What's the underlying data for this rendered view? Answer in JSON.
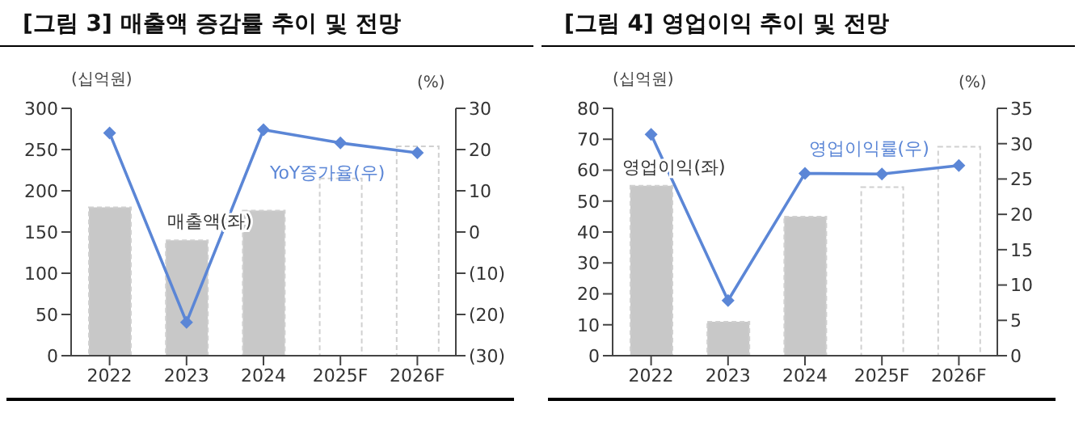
{
  "chart_data": [
    {
      "type": "bar",
      "title": "[그림 3] 매출액 증감률 추이 및 전망",
      "ylabel": "(십억원)",
      "y2label": "(%)",
      "categories": [
        "2022",
        "2023",
        "2024",
        "2025F",
        "2026F"
      ],
      "series": [
        {
          "name": "매출액(좌)",
          "colors": [
            "#c8c8c8",
            "#c8c8c8",
            "#c8c8c8",
            "#ffffff",
            "#ffffff"
          ],
          "values": [
            180,
            140,
            176,
            215,
            254
          ]
        },
        {
          "name": "YoY증가율(우)",
          "type": "line",
          "axis": "y2",
          "color": "#5b86d6",
          "values": [
            24.0,
            -21.9,
            24.8,
            21.6,
            19.2
          ]
        }
      ],
      "ylim": [
        0,
        300
      ],
      "yticks": [
        0,
        50,
        100,
        150,
        200,
        250,
        300
      ],
      "y2lim": [
        -30,
        30
      ],
      "y2ticks": [
        {
          "value": -30,
          "label": "(30)"
        },
        {
          "value": -20,
          "label": "(20)"
        },
        {
          "value": -10,
          "label": "(10)"
        },
        0,
        10,
        20,
        30
      ],
      "grid": false,
      "legend": false,
      "marker": "diamond"
    },
    {
      "type": "bar",
      "title": "[그림 4] 영업이익 추이 및 전망",
      "ylabel": "(십억원)",
      "y2label": "(%)",
      "categories": [
        "2022",
        "2023",
        "2024",
        "2025F",
        "2026F"
      ],
      "series": [
        {
          "name": "영업이익(좌)",
          "colors": [
            "#c8c8c8",
            "#c8c8c8",
            "#c8c8c8",
            "#ffffff",
            "#ffffff"
          ],
          "values": [
            55,
            11,
            45,
            54.5,
            67.6
          ]
        },
        {
          "name": "영업이익률(우)",
          "type": "line",
          "axis": "y2",
          "color": "#5b86d6",
          "values": [
            31.3,
            7.8,
            25.8,
            25.7,
            26.9
          ]
        }
      ],
      "ylim": [
        0,
        80
      ],
      "yticks": [
        0,
        10,
        20,
        30,
        40,
        50,
        60,
        70,
        80
      ],
      "y2lim": [
        0,
        35
      ],
      "y2ticks": [
        0,
        5,
        10,
        15,
        20,
        25,
        30,
        35
      ],
      "grid": false,
      "legend": false,
      "marker": "diamond"
    }
  ]
}
